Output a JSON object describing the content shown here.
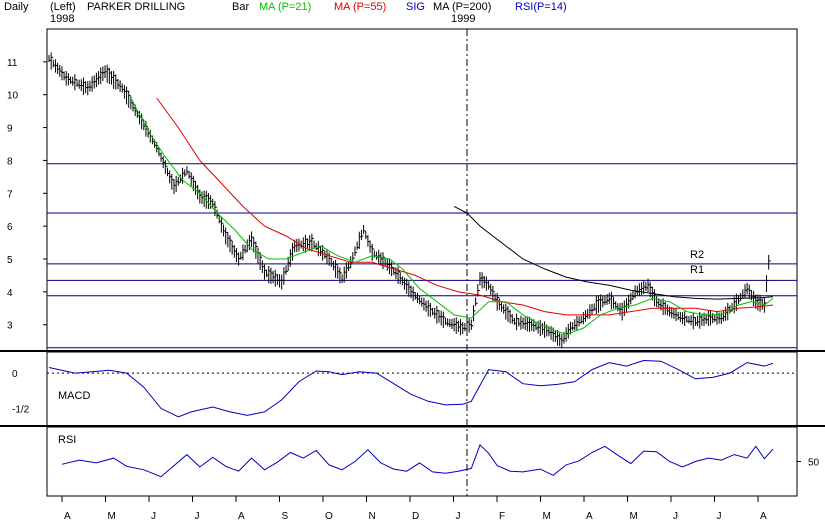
{
  "header": {
    "daily_label": "Daily",
    "left_label": "(Left)",
    "year_start": "1998",
    "year_mid": "1999",
    "symbol_name": "PARKER DRILLING",
    "bar_label": "Bar",
    "ma21_label": "MA (P=21)",
    "ma55_label": "MA (P=55)",
    "sig_label": "SIG",
    "ma200_label": "MA (P=200)",
    "rsi_label": "RSI(P=14)"
  },
  "colors": {
    "price_bars": "#000000",
    "ma21": "#00c000",
    "ma55": "#e00000",
    "ma200": "#000000",
    "hlines": "#000080",
    "macd": "#0000c0",
    "rsi": "#0000c0",
    "frame": "#000000"
  },
  "chart_data": [
    {
      "type": "bar",
      "title": "PARKER DRILLING",
      "ylim": [
        2.2,
        12.0
      ],
      "y_ticks": [
        "11",
        "10",
        "9",
        "8",
        "7",
        "6",
        "5",
        "4",
        "3"
      ],
      "y_tick_values": [
        11,
        10,
        9,
        8,
        7,
        6,
        5,
        4,
        3
      ],
      "x_month_labels": [
        "A",
        "M",
        "J",
        "J",
        "A",
        "S",
        "O",
        "N",
        "D",
        "J",
        "F",
        "M",
        "A",
        "M",
        "J",
        "J",
        "A"
      ],
      "horizontal_lines": [
        7.9,
        6.4,
        4.85,
        4.35,
        3.88,
        2.3
      ],
      "annotations": [
        "R2",
        "R1"
      ],
      "price_anchors": [
        [
          0,
          11.1
        ],
        [
          4,
          10.5
        ],
        [
          9,
          10.2
        ],
        [
          13,
          10.7
        ],
        [
          17,
          10.2
        ],
        [
          21,
          9.3
        ],
        [
          25,
          8.4
        ],
        [
          29,
          7.2
        ],
        [
          32,
          7.7
        ],
        [
          35,
          6.9
        ],
        [
          38,
          6.7
        ],
        [
          41,
          5.7
        ],
        [
          44,
          5.0
        ],
        [
          47,
          5.6
        ],
        [
          50,
          4.6
        ],
        [
          54,
          4.3
        ],
        [
          57,
          5.4
        ],
        [
          61,
          5.5
        ],
        [
          65,
          5.0
        ],
        [
          68,
          4.4
        ],
        [
          70,
          4.9
        ],
        [
          73,
          5.9
        ],
        [
          75,
          5.2
        ],
        [
          78,
          4.9
        ],
        [
          81,
          4.5
        ],
        [
          84,
          4.0
        ],
        [
          88,
          3.5
        ],
        [
          92,
          3.1
        ],
        [
          96,
          2.9
        ],
        [
          98,
          3.0
        ],
        [
          100,
          4.4
        ],
        [
          102,
          4.2
        ],
        [
          104,
          3.7
        ],
        [
          108,
          3.1
        ],
        [
          112,
          3.0
        ],
        [
          116,
          2.8
        ],
        [
          119,
          2.5
        ],
        [
          121,
          2.9
        ],
        [
          124,
          3.2
        ],
        [
          127,
          3.6
        ],
        [
          130,
          3.8
        ],
        [
          133,
          3.4
        ],
        [
          136,
          4.0
        ],
        [
          139,
          4.2
        ],
        [
          141,
          3.7
        ],
        [
          144,
          3.4
        ],
        [
          147,
          3.2
        ],
        [
          150,
          3.1
        ],
        [
          153,
          3.2
        ],
        [
          156,
          3.2
        ],
        [
          159,
          3.6
        ],
        [
          162,
          4.1
        ],
        [
          164,
          3.7
        ],
        [
          166,
          3.6
        ],
        [
          167,
          4.9
        ]
      ],
      "ma21_anchors": [
        [
          19,
          9.9
        ],
        [
          23,
          8.9
        ],
        [
          27,
          8.1
        ],
        [
          31,
          7.4
        ],
        [
          35,
          7.0
        ],
        [
          39,
          6.4
        ],
        [
          43,
          5.9
        ],
        [
          47,
          5.3
        ],
        [
          51,
          5.0
        ],
        [
          55,
          5.0
        ],
        [
          59,
          5.2
        ],
        [
          63,
          5.4
        ],
        [
          67,
          5.1
        ],
        [
          71,
          4.9
        ],
        [
          75,
          5.1
        ],
        [
          79,
          5.0
        ],
        [
          82,
          4.7
        ],
        [
          86,
          4.1
        ],
        [
          90,
          3.7
        ],
        [
          94,
          3.3
        ],
        [
          98,
          3.2
        ],
        [
          102,
          3.7
        ],
        [
          106,
          3.7
        ],
        [
          110,
          3.3
        ],
        [
          114,
          3.0
        ],
        [
          118,
          2.8
        ],
        [
          120,
          2.7
        ],
        [
          124,
          2.9
        ],
        [
          128,
          3.3
        ],
        [
          132,
          3.5
        ],
        [
          136,
          3.6
        ],
        [
          140,
          3.8
        ],
        [
          144,
          3.7
        ],
        [
          148,
          3.4
        ],
        [
          152,
          3.3
        ],
        [
          156,
          3.3
        ],
        [
          160,
          3.6
        ],
        [
          163,
          3.7
        ],
        [
          166,
          3.6
        ],
        [
          168,
          3.8
        ]
      ],
      "ma55_anchors": [
        [
          25,
          9.9
        ],
        [
          30,
          9.0
        ],
        [
          35,
          8.0
        ],
        [
          40,
          7.3
        ],
        [
          45,
          6.6
        ],
        [
          50,
          6.0
        ],
        [
          55,
          5.7
        ],
        [
          60,
          5.3
        ],
        [
          65,
          5.1
        ],
        [
          70,
          4.9
        ],
        [
          75,
          4.9
        ],
        [
          80,
          4.7
        ],
        [
          85,
          4.5
        ],
        [
          90,
          4.2
        ],
        [
          95,
          4.0
        ],
        [
          100,
          3.9
        ],
        [
          105,
          3.7
        ],
        [
          110,
          3.6
        ],
        [
          115,
          3.4
        ],
        [
          120,
          3.3
        ],
        [
          125,
          3.3
        ],
        [
          130,
          3.3
        ],
        [
          135,
          3.4
        ],
        [
          140,
          3.5
        ],
        [
          145,
          3.5
        ],
        [
          150,
          3.5
        ],
        [
          155,
          3.4
        ],
        [
          160,
          3.5
        ],
        [
          165,
          3.55
        ],
        [
          168,
          3.6
        ]
      ],
      "ma200_anchors": [
        [
          94,
          6.6
        ],
        [
          97,
          6.4
        ],
        [
          100,
          6.0
        ],
        [
          105,
          5.5
        ],
        [
          110,
          5.0
        ],
        [
          115,
          4.7
        ],
        [
          120,
          4.45
        ],
        [
          125,
          4.3
        ],
        [
          130,
          4.2
        ],
        [
          135,
          4.05
        ],
        [
          140,
          3.95
        ],
        [
          145,
          3.85
        ],
        [
          150,
          3.8
        ],
        [
          155,
          3.78
        ],
        [
          160,
          3.8
        ],
        [
          165,
          3.82
        ],
        [
          168,
          3.85
        ]
      ]
    },
    {
      "type": "line",
      "title": "MACD",
      "ylim": [
        -0.75,
        0.3
      ],
      "y_ticks": [
        "0",
        "-1/2"
      ],
      "y_tick_values": [
        0.0,
        -0.5
      ],
      "series": [
        {
          "name": "MACD",
          "points": [
            [
              0,
              0.08
            ],
            [
              6,
              0.0
            ],
            [
              10,
              0.02
            ],
            [
              14,
              0.04
            ],
            [
              18,
              0.0
            ],
            [
              22,
              -0.2
            ],
            [
              26,
              -0.5
            ],
            [
              30,
              -0.62
            ],
            [
              33,
              -0.55
            ],
            [
              38,
              -0.48
            ],
            [
              42,
              -0.55
            ],
            [
              46,
              -0.6
            ],
            [
              50,
              -0.55
            ],
            [
              54,
              -0.38
            ],
            [
              58,
              -0.12
            ],
            [
              62,
              0.03
            ],
            [
              65,
              0.02
            ],
            [
              68,
              -0.02
            ],
            [
              72,
              0.02
            ],
            [
              76,
              0.0
            ],
            [
              80,
              -0.15
            ],
            [
              84,
              -0.3
            ],
            [
              88,
              -0.4
            ],
            [
              92,
              -0.45
            ],
            [
              96,
              -0.44
            ],
            [
              98,
              -0.4
            ],
            [
              102,
              0.05
            ],
            [
              106,
              0.02
            ],
            [
              110,
              -0.15
            ],
            [
              114,
              -0.18
            ],
            [
              118,
              -0.16
            ],
            [
              122,
              -0.12
            ],
            [
              126,
              0.05
            ],
            [
              130,
              0.15
            ],
            [
              134,
              0.1
            ],
            [
              138,
              0.18
            ],
            [
              142,
              0.17
            ],
            [
              146,
              0.05
            ],
            [
              150,
              -0.08
            ],
            [
              154,
              -0.06
            ],
            [
              158,
              0.0
            ],
            [
              162,
              0.15
            ],
            [
              166,
              0.1
            ],
            [
              168,
              0.14
            ]
          ]
        }
      ]
    },
    {
      "type": "line",
      "title": "RSI",
      "ylim": [
        0,
        100
      ],
      "y_ticks": [
        "50"
      ],
      "y_tick_values": [
        50
      ],
      "series": [
        {
          "name": "RSI",
          "points": [
            [
              3,
              46
            ],
            [
              7,
              52
            ],
            [
              11,
              48
            ],
            [
              15,
              55
            ],
            [
              18,
              43
            ],
            [
              22,
              38
            ],
            [
              26,
              28
            ],
            [
              29,
              44
            ],
            [
              32,
              60
            ],
            [
              35,
              42
            ],
            [
              38,
              56
            ],
            [
              41,
              43
            ],
            [
              44,
              36
            ],
            [
              47,
              55
            ],
            [
              50,
              38
            ],
            [
              53,
              49
            ],
            [
              56,
              63
            ],
            [
              59,
              55
            ],
            [
              62,
              66
            ],
            [
              65,
              45
            ],
            [
              68,
              38
            ],
            [
              71,
              50
            ],
            [
              74,
              67
            ],
            [
              77,
              48
            ],
            [
              80,
              39
            ],
            [
              83,
              36
            ],
            [
              86,
              48
            ],
            [
              89,
              35
            ],
            [
              92,
              33
            ],
            [
              95,
              36
            ],
            [
              98,
              40
            ],
            [
              100,
              74
            ],
            [
              102,
              62
            ],
            [
              104,
              44
            ],
            [
              107,
              36
            ],
            [
              110,
              35
            ],
            [
              114,
              39
            ],
            [
              117,
              30
            ],
            [
              120,
              45
            ],
            [
              123,
              51
            ],
            [
              126,
              63
            ],
            [
              129,
              72
            ],
            [
              132,
              59
            ],
            [
              135,
              47
            ],
            [
              138,
              65
            ],
            [
              141,
              64
            ],
            [
              144,
              50
            ],
            [
              147,
              42
            ],
            [
              150,
              50
            ],
            [
              153,
              55
            ],
            [
              156,
              52
            ],
            [
              159,
              60
            ],
            [
              162,
              55
            ],
            [
              164,
              72
            ],
            [
              166,
              54
            ],
            [
              168,
              68
            ]
          ]
        }
      ]
    }
  ]
}
